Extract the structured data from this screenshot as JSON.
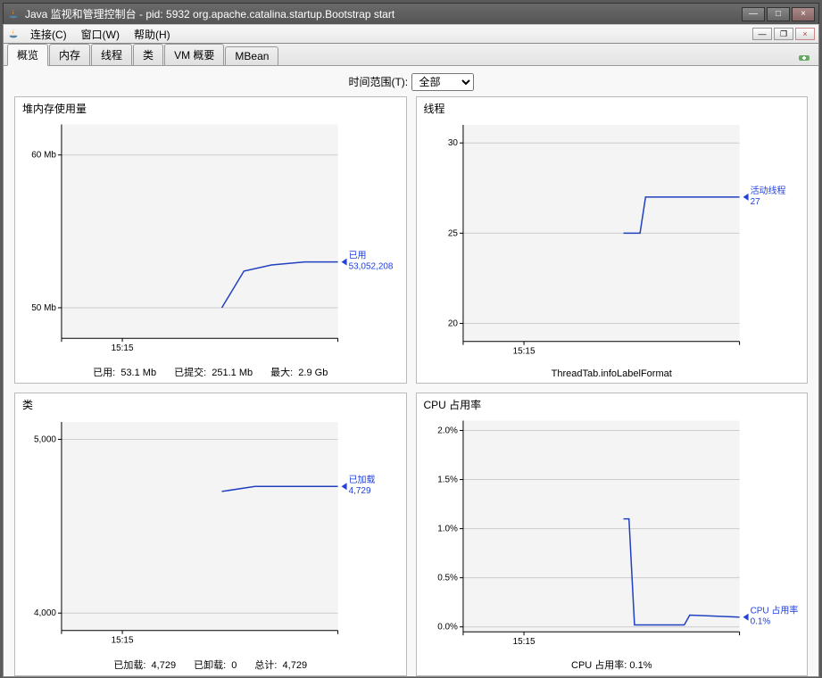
{
  "window": {
    "title": "Java 监视和管理控制台 - pid: 5932 org.apache.catalina.startup.Bootstrap start",
    "min_glyph": "—",
    "max_glyph": "□",
    "close_glyph": "×"
  },
  "menu": {
    "connect": "连接(C)",
    "window": "窗口(W)",
    "help": "帮助(H)"
  },
  "mdi": {
    "min": "—",
    "restore": "❐",
    "close": "×"
  },
  "tabs": {
    "overview": "概览",
    "memory": "内存",
    "threads": "线程",
    "classes": "类",
    "vm": "VM 概要",
    "mbean": "MBean"
  },
  "timerange": {
    "label": "时间范围(T):",
    "value": "全部"
  },
  "colors": {
    "series": "#2040c0",
    "legend": "#2040e0",
    "grid": "#cccccc",
    "axis": "#000000",
    "plot_bg": "#f4f4f4"
  },
  "charts": {
    "heap": {
      "title": "堆内存使用量",
      "y_ticks": [
        {
          "v": 50,
          "label": "50 Mb"
        },
        {
          "v": 60,
          "label": "60 Mb"
        }
      ],
      "y_min": 48,
      "y_max": 62,
      "x_label": "15:15",
      "legend_name": "已用",
      "legend_value": "53,052,208",
      "points": [
        [
          0.58,
          50.0
        ],
        [
          0.66,
          52.4
        ],
        [
          0.76,
          52.8
        ],
        [
          0.88,
          53.0
        ],
        [
          1.0,
          53.0
        ]
      ],
      "footer": [
        {
          "k": "已用:",
          "v": "53.1  Mb"
        },
        {
          "k": "已提交:",
          "v": "251.1  Mb"
        },
        {
          "k": "最大:",
          "v": "2.9  Gb"
        }
      ]
    },
    "threads": {
      "title": "线程",
      "y_ticks": [
        {
          "v": 20,
          "label": "20"
        },
        {
          "v": 25,
          "label": "25"
        },
        {
          "v": 30,
          "label": "30"
        }
      ],
      "y_min": 19,
      "y_max": 31,
      "x_label": "15:15",
      "legend_name": "活动线程",
      "legend_value": "27",
      "points": [
        [
          0.58,
          25.0
        ],
        [
          0.64,
          25.0
        ],
        [
          0.66,
          27.0
        ],
        [
          1.0,
          27.0
        ]
      ],
      "footer_text": "ThreadTab.infoLabelFormat"
    },
    "classes": {
      "title": "类",
      "y_ticks": [
        {
          "v": 4000,
          "label": "4,000"
        },
        {
          "v": 5000,
          "label": "5,000"
        }
      ],
      "y_min": 3900,
      "y_max": 5100,
      "x_label": "15:15",
      "legend_name": "已加载",
      "legend_value": "4,729",
      "points": [
        [
          0.58,
          4700
        ],
        [
          0.7,
          4729
        ],
        [
          1.0,
          4729
        ]
      ],
      "footer": [
        {
          "k": "已加载:",
          "v": "4,729"
        },
        {
          "k": "已卸载:",
          "v": "0"
        },
        {
          "k": "总计:",
          "v": "4,729"
        }
      ]
    },
    "cpu": {
      "title": "CPU 占用率",
      "y_ticks": [
        {
          "v": 0,
          "label": "0.0%"
        },
        {
          "v": 0.5,
          "label": "0.5%"
        },
        {
          "v": 1.0,
          "label": "1.0%"
        },
        {
          "v": 1.5,
          "label": "1.5%"
        },
        {
          "v": 2.0,
          "label": "2.0%"
        }
      ],
      "y_min": -0.05,
      "y_max": 2.1,
      "x_label": "15:15",
      "legend_name": "CPU 占用率",
      "legend_value": "0.1%",
      "points": [
        [
          0.58,
          1.1
        ],
        [
          0.6,
          1.1
        ],
        [
          0.62,
          0.02
        ],
        [
          0.8,
          0.02
        ],
        [
          0.82,
          0.12
        ],
        [
          1.0,
          0.1
        ]
      ],
      "footer_text": "CPU 占用率: 0.1%"
    }
  }
}
